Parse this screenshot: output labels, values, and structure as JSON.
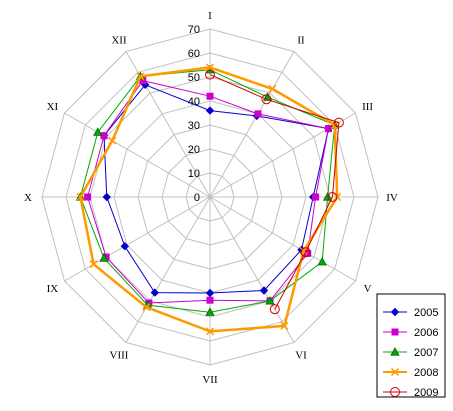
{
  "chart_data": {
    "type": "radar",
    "categories": [
      "I",
      "II",
      "III",
      "IV",
      "V",
      "VI",
      "VII",
      "VIII",
      "IX",
      "X",
      "XI",
      "XII"
    ],
    "rticks": [
      0,
      10,
      20,
      30,
      40,
      50,
      60,
      70
    ],
    "rmax": 70,
    "grid": true,
    "legend_position": "bottom-right",
    "series": [
      {
        "name": "2005",
        "color": "#0000cc",
        "marker": "diamond",
        "values": [
          36,
          39,
          57,
          43,
          44,
          45,
          40,
          46,
          41,
          43,
          51,
          54
        ]
      },
      {
        "name": "2006",
        "color": "#cc00cc",
        "marker": "square",
        "values": [
          42,
          40,
          57,
          44,
          47,
          50,
          43,
          51,
          50,
          51,
          51,
          56
        ]
      },
      {
        "name": "2007",
        "color": "#00aa00",
        "marker": "triangle",
        "values": [
          53,
          48,
          60,
          49,
          54,
          50,
          48,
          52,
          51,
          54,
          54,
          58
        ]
      },
      {
        "name": "2008",
        "color": "#ff9900",
        "marker": "x",
        "values": [
          54,
          52,
          60,
          53,
          45,
          62,
          56,
          53,
          56,
          54,
          47,
          58
        ]
      },
      {
        "name": "2009",
        "color": "#cc0000",
        "marker": "circle",
        "values": [
          51,
          47,
          62,
          51,
          46,
          54,
          null,
          null,
          null,
          null,
          null,
          null
        ]
      }
    ]
  }
}
